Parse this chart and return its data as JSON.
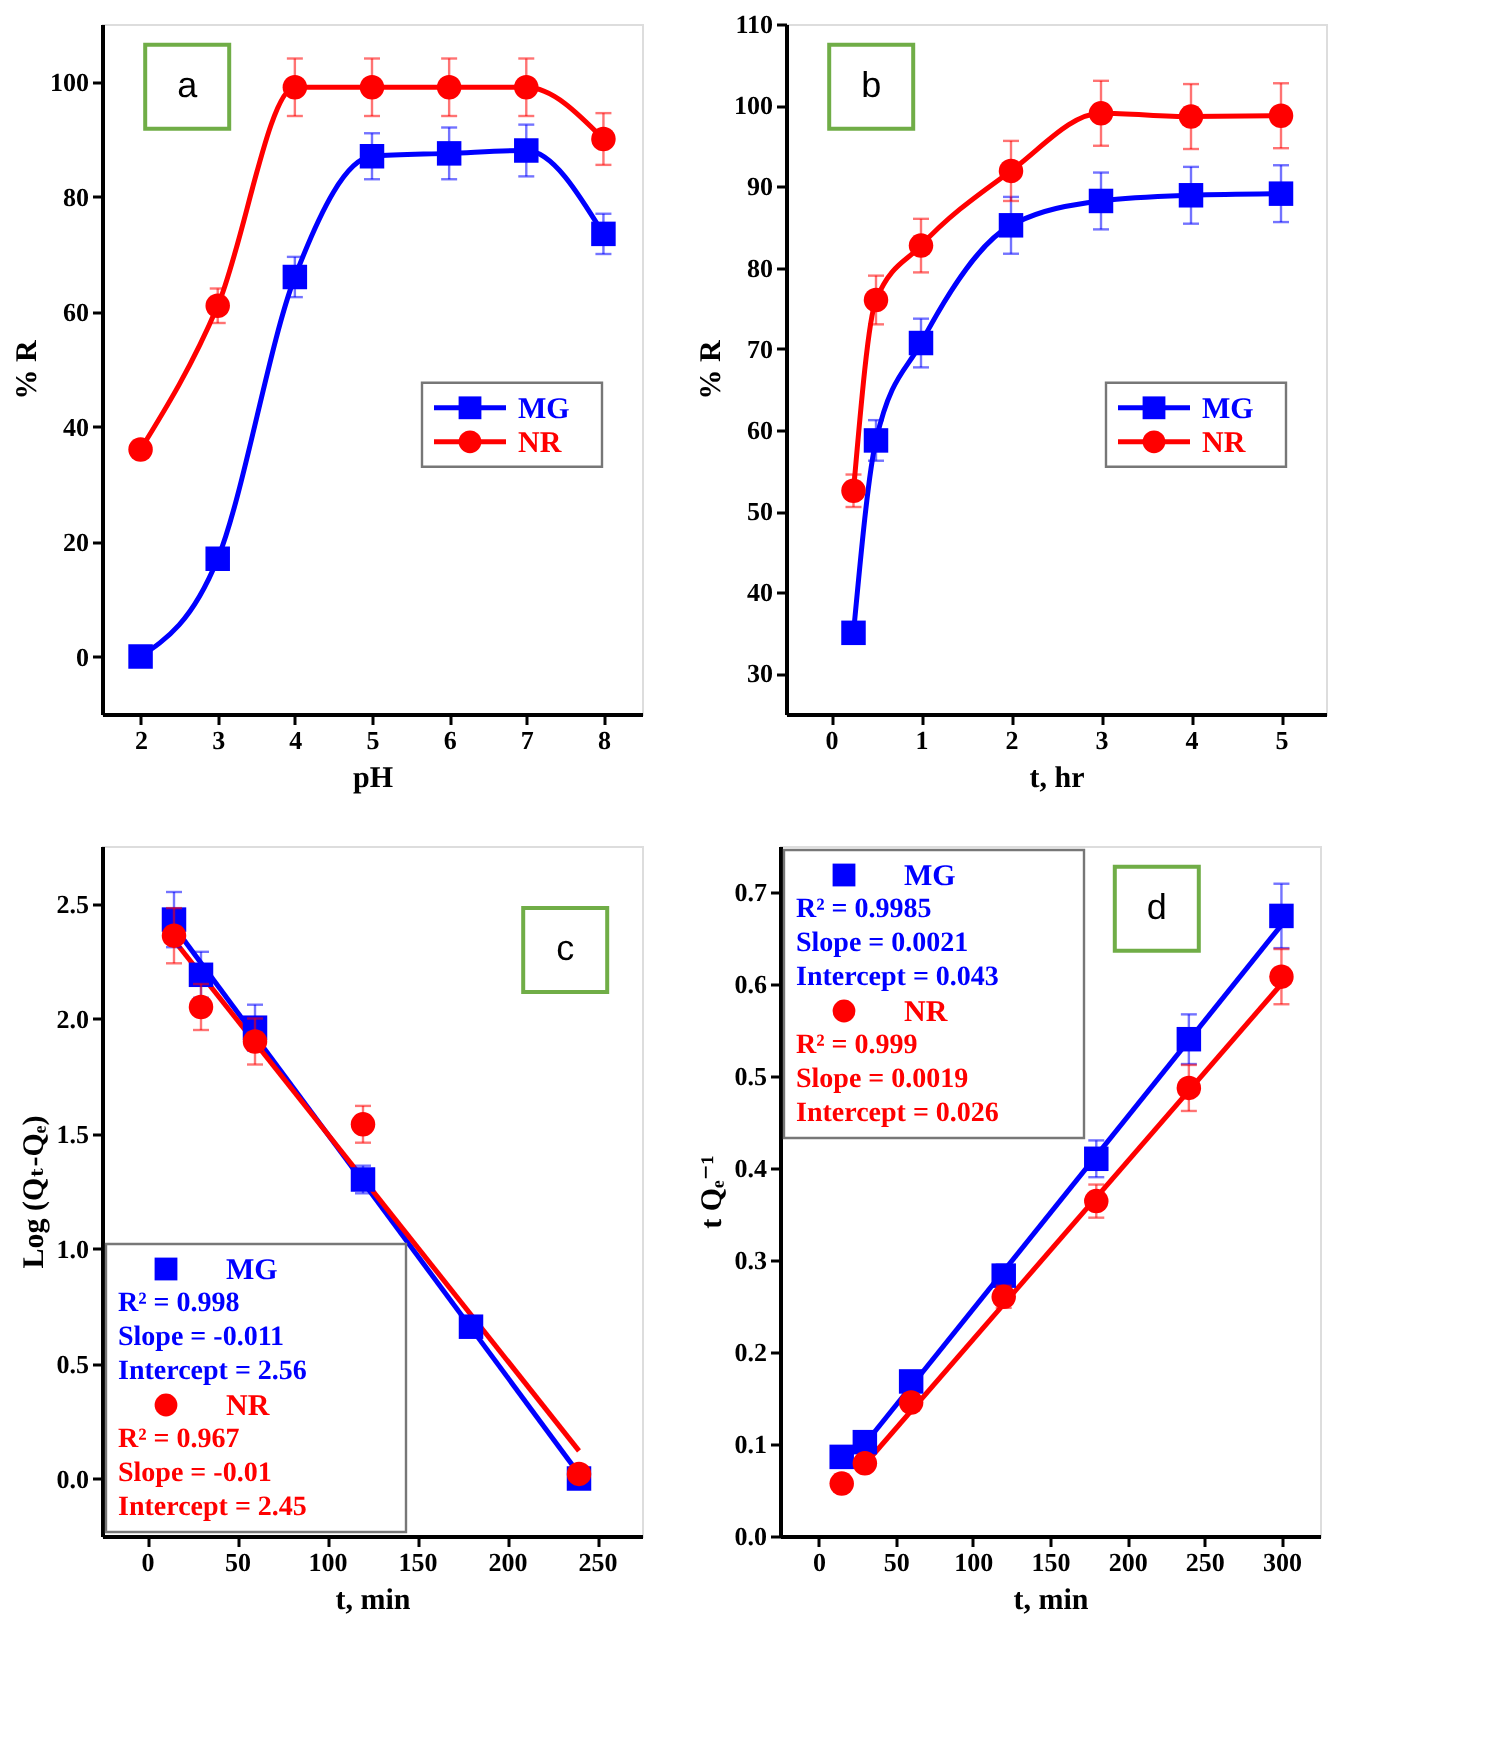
{
  "chart_data": [
    {
      "type": "line",
      "title": "a",
      "xlabel": "pH",
      "ylabel": "% R",
      "x": [
        2,
        3,
        4,
        5,
        6,
        7,
        8
      ],
      "xlim": [
        1.5,
        8.5
      ],
      "xticks": [
        2,
        3,
        4,
        5,
        6,
        7,
        8
      ],
      "ylim": [
        -10,
        110
      ],
      "yticks": [
        0,
        20,
        40,
        60,
        80,
        100
      ],
      "legend": "right",
      "series": [
        {
          "name": "MG",
          "color": "#0000ff",
          "marker": "square",
          "values": [
            0,
            17,
            66,
            87,
            87.5,
            88,
            73.5
          ],
          "errors": [
            null,
            null,
            3.5,
            4,
            4.5,
            4.5,
            3.5
          ]
        },
        {
          "name": "NR",
          "color": "#ff0000",
          "marker": "circle",
          "values": [
            36,
            61,
            99,
            99,
            99,
            99,
            90
          ],
          "errors": [
            null,
            3,
            5,
            5,
            5,
            5,
            4.5
          ]
        }
      ]
    },
    {
      "type": "line",
      "title": "b",
      "xlabel": "t, hr",
      "ylabel": "% R",
      "x": [
        0.25,
        0.5,
        1,
        2,
        3,
        4,
        5
      ],
      "xlim": [
        -0.5,
        5.5
      ],
      "xticks": [
        0,
        1,
        2,
        3,
        4,
        5
      ],
      "ylim": [
        25,
        110
      ],
      "yticks": [
        30,
        40,
        50,
        60,
        70,
        80,
        90,
        100,
        110
      ],
      "legend": "right",
      "series": [
        {
          "name": "MG",
          "color": "#0000ff",
          "marker": "square",
          "values": [
            35,
            58.7,
            70.7,
            85.2,
            88.2,
            88.9,
            89.1
          ],
          "errors": [
            null,
            2.5,
            3,
            3.5,
            3.5,
            3.5,
            3.5
          ]
        },
        {
          "name": "NR",
          "color": "#ff0000",
          "marker": "circle",
          "values": [
            52.5,
            76,
            82.7,
            91.9,
            99,
            98.6,
            98.7
          ],
          "errors": [
            2,
            3,
            3.3,
            3.7,
            4,
            4,
            4
          ]
        }
      ]
    },
    {
      "type": "scatter",
      "title": "c",
      "xlabel": "t, min",
      "ylabel": "Log (Qₜ-Qₑ)",
      "xlim": [
        -25,
        275
      ],
      "xticks": [
        0,
        50,
        100,
        150,
        200,
        250
      ],
      "ylim": [
        -0.25,
        2.75
      ],
      "yticks": [
        {
          "value": 0,
          "label": "0.0"
        },
        0.5,
        {
          "value": 1,
          "label": "1.0"
        },
        1.5,
        {
          "value": 2,
          "label": "2.0"
        },
        2.5
      ],
      "legend": "bottom left",
      "annotations": [
        "R² = 0.998",
        "Slope = -0.011",
        "Intercept = 2.56",
        "R² = 0.967",
        "Slope = -0.01",
        "Intercept = 2.45"
      ],
      "series": [
        {
          "type": "line",
          "marker": "none",
          "color": "#0000ff",
          "x": [
            15,
            240
          ],
          "values": [
            2.4,
            0.02
          ]
        },
        {
          "type": "line",
          "marker": "none",
          "color": "#ff0000",
          "x": [
            15,
            240
          ],
          "values": [
            2.34,
            0.12
          ]
        },
        {
          "name": "MG",
          "color": "#0000ff",
          "marker": "square",
          "x": [
            15,
            30,
            60,
            120,
            180,
            240
          ],
          "values": [
            2.43,
            2.19,
            1.96,
            1.3,
            0.66,
            0.0
          ],
          "errors": [
            0.12,
            0.1,
            0.1,
            0.06,
            null,
            null
          ]
        },
        {
          "name": "NR",
          "color": "#ff0000",
          "marker": "circle",
          "x": [
            15,
            30,
            60,
            120,
            240
          ],
          "values": [
            2.36,
            2.05,
            1.9,
            1.54,
            0.02
          ],
          "errors": [
            0.12,
            0.1,
            0.1,
            0.08,
            null
          ]
        }
      ]
    },
    {
      "type": "scatter",
      "title": "d",
      "xlabel": "t, min",
      "ylabel": "t Qₑ⁻¹",
      "xlim": [
        -25,
        325
      ],
      "xticks": [
        0,
        50,
        100,
        150,
        200,
        250,
        300
      ],
      "ylim": [
        0,
        0.75
      ],
      "yticks": [
        {
          "value": 0,
          "label": "0.0"
        },
        0.1,
        0.2,
        0.3,
        0.4,
        0.5,
        0.6,
        0.7
      ],
      "legend": "top left",
      "annotations": [
        "R² = 0.9985",
        "Slope = 0.0021",
        "Intercept = 0.043",
        "R² = 0.999",
        "Slope = 0.0019",
        "Intercept = 0.026"
      ],
      "series": [
        {
          "type": "line",
          "marker": "none",
          "color": "#0000ff",
          "x": [
            30,
            300
          ],
          "values": [
            0.1,
            0.664
          ]
        },
        {
          "type": "line",
          "marker": "none",
          "color": "#ff0000",
          "x": [
            30,
            300
          ],
          "values": [
            0.078,
            0.6
          ]
        },
        {
          "name": "MG",
          "color": "#0000ff",
          "marker": "square",
          "x": [
            15,
            30,
            60,
            120,
            180,
            240,
            300
          ],
          "values": [
            0.086,
            0.102,
            0.168,
            0.283,
            0.41,
            0.54,
            0.674
          ],
          "errors": [
            null,
            null,
            null,
            0.012,
            0.02,
            0.027,
            0.035
          ]
        },
        {
          "name": "NR",
          "color": "#ff0000",
          "marker": "circle",
          "x": [
            15,
            30,
            60,
            120,
            180,
            240,
            300
          ],
          "values": [
            0.057,
            0.079,
            0.145,
            0.26,
            0.364,
            0.487,
            0.608
          ],
          "errors": [
            null,
            null,
            null,
            0.012,
            0.018,
            0.025,
            0.03
          ]
        }
      ]
    }
  ]
}
